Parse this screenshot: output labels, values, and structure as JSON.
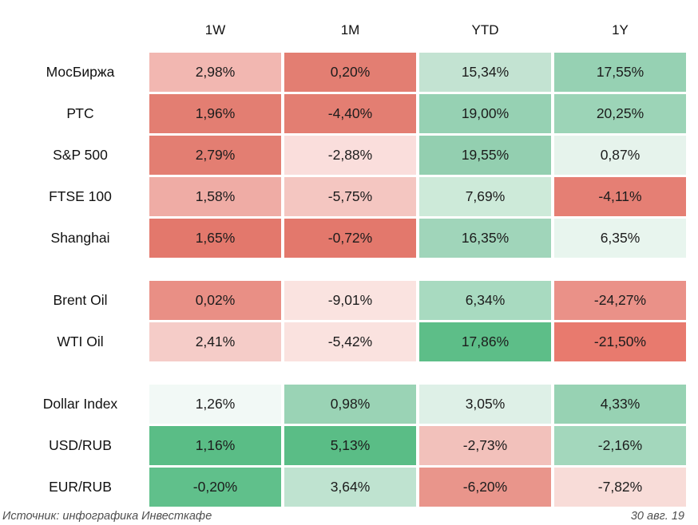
{
  "table": {
    "columns": [
      "1W",
      "1M",
      "YTD",
      "1Y"
    ],
    "groups": [
      [
        {
          "label": "МосБиржа",
          "cells": [
            {
              "text": "2,98%",
              "bg": "#f2b7b1"
            },
            {
              "text": "0,20%",
              "bg": "#e37e72"
            },
            {
              "text": "15,34%",
              "bg": "#c3e3d2"
            },
            {
              "text": "17,55%",
              "bg": "#96d1b3"
            }
          ]
        },
        {
          "label": "РТС",
          "cells": [
            {
              "text": "1,96%",
              "bg": "#e37e72"
            },
            {
              "text": "-4,40%",
              "bg": "#e37e72"
            },
            {
              "text": "19,00%",
              "bg": "#96d1b3"
            },
            {
              "text": "20,25%",
              "bg": "#9cd4b7"
            }
          ]
        },
        {
          "label": "S&P 500",
          "cells": [
            {
              "text": "2,79%",
              "bg": "#e37e72"
            },
            {
              "text": "-2,88%",
              "bg": "#fadedc"
            },
            {
              "text": "19,55%",
              "bg": "#93cfb0"
            },
            {
              "text": "0,87%",
              "bg": "#e6f3ec"
            }
          ]
        },
        {
          "label": "FTSE 100",
          "cells": [
            {
              "text": "1,58%",
              "bg": "#efaca5"
            },
            {
              "text": "-5,75%",
              "bg": "#f4c6c1"
            },
            {
              "text": "7,69%",
              "bg": "#cdead9"
            },
            {
              "text": "-4,11%",
              "bg": "#e57f74"
            }
          ]
        },
        {
          "label": "Shanghai",
          "cells": [
            {
              "text": "1,65%",
              "bg": "#e3786c"
            },
            {
              "text": "-0,72%",
              "bg": "#e3786c"
            },
            {
              "text": "16,35%",
              "bg": "#a0d5ba"
            },
            {
              "text": "6,35%",
              "bg": "#e8f5ee"
            }
          ]
        }
      ],
      [
        {
          "label": "Brent Oil",
          "cells": [
            {
              "text": "0,02%",
              "bg": "#e98f85"
            },
            {
              "text": "-9,01%",
              "bg": "#fae3e0"
            },
            {
              "text": "6,34%",
              "bg": "#a8dac0"
            },
            {
              "text": "-24,27%",
              "bg": "#ea9188"
            }
          ]
        },
        {
          "label": "WTI Oil",
          "cells": [
            {
              "text": "2,41%",
              "bg": "#f5ccc8"
            },
            {
              "text": "-5,42%",
              "bg": "#fae2df"
            },
            {
              "text": "17,86%",
              "bg": "#5dbe88"
            },
            {
              "text": "-21,50%",
              "bg": "#e87a6e"
            }
          ]
        }
      ],
      [
        {
          "label": "Dollar Index",
          "cells": [
            {
              "text": "1,26%",
              "bg": "#f2f9f6"
            },
            {
              "text": "0,98%",
              "bg": "#9ad3b5"
            },
            {
              "text": "3,05%",
              "bg": "#def0e7"
            },
            {
              "text": "4,33%",
              "bg": "#97d2b3"
            }
          ]
        },
        {
          "label": "USD/RUB",
          "cells": [
            {
              "text": "1,16%",
              "bg": "#5abd86"
            },
            {
              "text": "5,13%",
              "bg": "#5abd86"
            },
            {
              "text": "-2,73%",
              "bg": "#f2c1bb"
            },
            {
              "text": "-2,16%",
              "bg": "#a3d7bc"
            }
          ]
        },
        {
          "label": "EUR/RUB",
          "cells": [
            {
              "text": "-0,20%",
              "bg": "#60c08b"
            },
            {
              "text": "3,64%",
              "bg": "#bfe3d0"
            },
            {
              "text": "-6,20%",
              "bg": "#e9958b"
            },
            {
              "text": "-7,82%",
              "bg": "#f8dcd8"
            }
          ]
        }
      ]
    ]
  },
  "footer": {
    "source": "Источник: инфографика Инвесткафе",
    "date": "30 авг. 19"
  },
  "colors": {
    "strong_red": "#e37e72",
    "light_red": "#f5ccc8",
    "strong_green": "#5abd86",
    "light_green": "#c3e3d2",
    "text": "#1c1c1c",
    "caption": "#4f4f4f"
  },
  "chart_data": {
    "type": "heatmap",
    "title": "",
    "columns": [
      "1W",
      "1M",
      "YTD",
      "1Y"
    ],
    "rows": [
      "МосБиржа",
      "РТС",
      "S&P 500",
      "FTSE 100",
      "Shanghai",
      "Brent Oil",
      "WTI Oil",
      "Dollar Index",
      "USD/RUB",
      "EUR/RUB"
    ],
    "row_groups": [
      [
        "МосБиржа",
        "РТС",
        "S&P 500",
        "FTSE 100",
        "Shanghai"
      ],
      [
        "Brent Oil",
        "WTI Oil"
      ],
      [
        "Dollar Index",
        "USD/RUB",
        "EUR/RUB"
      ]
    ],
    "values_percent": [
      [
        2.98,
        0.2,
        15.34,
        17.55
      ],
      [
        1.96,
        -4.4,
        19.0,
        20.25
      ],
      [
        2.79,
        -2.88,
        19.55,
        0.87
      ],
      [
        1.58,
        -5.75,
        7.69,
        -4.11
      ],
      [
        1.65,
        -0.72,
        16.35,
        6.35
      ],
      [
        0.02,
        -9.01,
        6.34,
        -24.27
      ],
      [
        2.41,
        -5.42,
        17.86,
        -21.5
      ],
      [
        1.26,
        0.98,
        3.05,
        4.33
      ],
      [
        1.16,
        5.13,
        -2.73,
        -2.16
      ],
      [
        -0.2,
        3.64,
        -6.2,
        -7.82
      ]
    ],
    "legend_position": "none",
    "grid": false,
    "source": "Источник: инфографика Инвесткафе",
    "date": "30 авг. 19"
  }
}
